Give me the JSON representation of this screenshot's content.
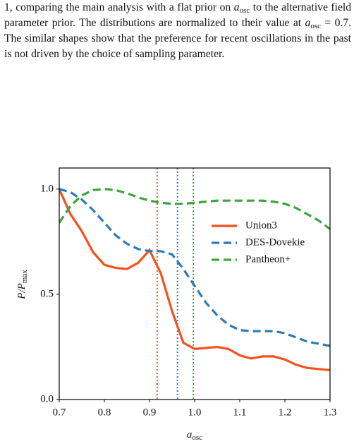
{
  "paragraph": [
    "1, comparing the main analysis with a flat prior on ",
    {
      "var": "a",
      "sub": "osc"
    },
    " to the alternative field parameter prior. The distributions are normalized to their value at ",
    {
      "var": "a",
      "sub": "osc"
    },
    " = 0.7. The similar shapes show that the preference for recent oscillations in the past is not driven by the choice of sampling parameter."
  ],
  "chart_data": {
    "type": "line",
    "xlabel": {
      "var": "a",
      "sub": "osc"
    },
    "ylabel": {
      "var": "P/P",
      "sub": "max"
    },
    "x": [
      0.7,
      0.725,
      0.75,
      0.775,
      0.8,
      0.825,
      0.85,
      0.875,
      0.9,
      0.925,
      0.95,
      0.975,
      1.0,
      1.025,
      1.05,
      1.075,
      1.1,
      1.125,
      1.15,
      1.175,
      1.2,
      1.225,
      1.25,
      1.275,
      1.3
    ],
    "series": [
      {
        "name": "Union3",
        "color": "#f4511e",
        "dash": false,
        "values": [
          1.0,
          0.88,
          0.8,
          0.7,
          0.64,
          0.625,
          0.62,
          0.65,
          0.71,
          0.6,
          0.42,
          0.27,
          0.24,
          0.245,
          0.25,
          0.24,
          0.21,
          0.195,
          0.205,
          0.205,
          0.19,
          0.165,
          0.15,
          0.145,
          0.14
        ]
      },
      {
        "name": "DES-Dovekie",
        "color": "#2b7bba",
        "dash": true,
        "values": [
          1.0,
          0.985,
          0.95,
          0.9,
          0.84,
          0.78,
          0.74,
          0.715,
          0.705,
          0.705,
          0.69,
          0.62,
          0.54,
          0.46,
          0.4,
          0.355,
          0.33,
          0.325,
          0.325,
          0.325,
          0.315,
          0.295,
          0.275,
          0.265,
          0.255
        ]
      },
      {
        "name": "Pantheon+",
        "color": "#3aa53a",
        "dash": true,
        "values": [
          0.84,
          0.92,
          0.97,
          0.995,
          1.0,
          0.995,
          0.98,
          0.96,
          0.945,
          0.935,
          0.93,
          0.93,
          0.935,
          0.94,
          0.945,
          0.945,
          0.945,
          0.945,
          0.945,
          0.94,
          0.93,
          0.91,
          0.88,
          0.85,
          0.81
        ]
      }
    ],
    "vlines": [
      {
        "value": 0.917,
        "color": "#f4511e"
      },
      {
        "value": 0.962,
        "color": "#2b7bba"
      },
      {
        "value": 0.997,
        "color": "#3aa53a"
      }
    ],
    "xlim": [
      0.7,
      1.3
    ],
    "ylim": [
      0,
      1.1
    ],
    "xticks": [
      0.7,
      0.8,
      0.9,
      {
        "value": 1,
        "label": "1.0"
      },
      1.1,
      1.2,
      1.3
    ],
    "yticks": [
      {
        "value": 0,
        "label": "0.0"
      },
      0.5,
      {
        "value": 1,
        "label": "1.0"
      }
    ],
    "legend_loc": "right",
    "grid": false
  }
}
